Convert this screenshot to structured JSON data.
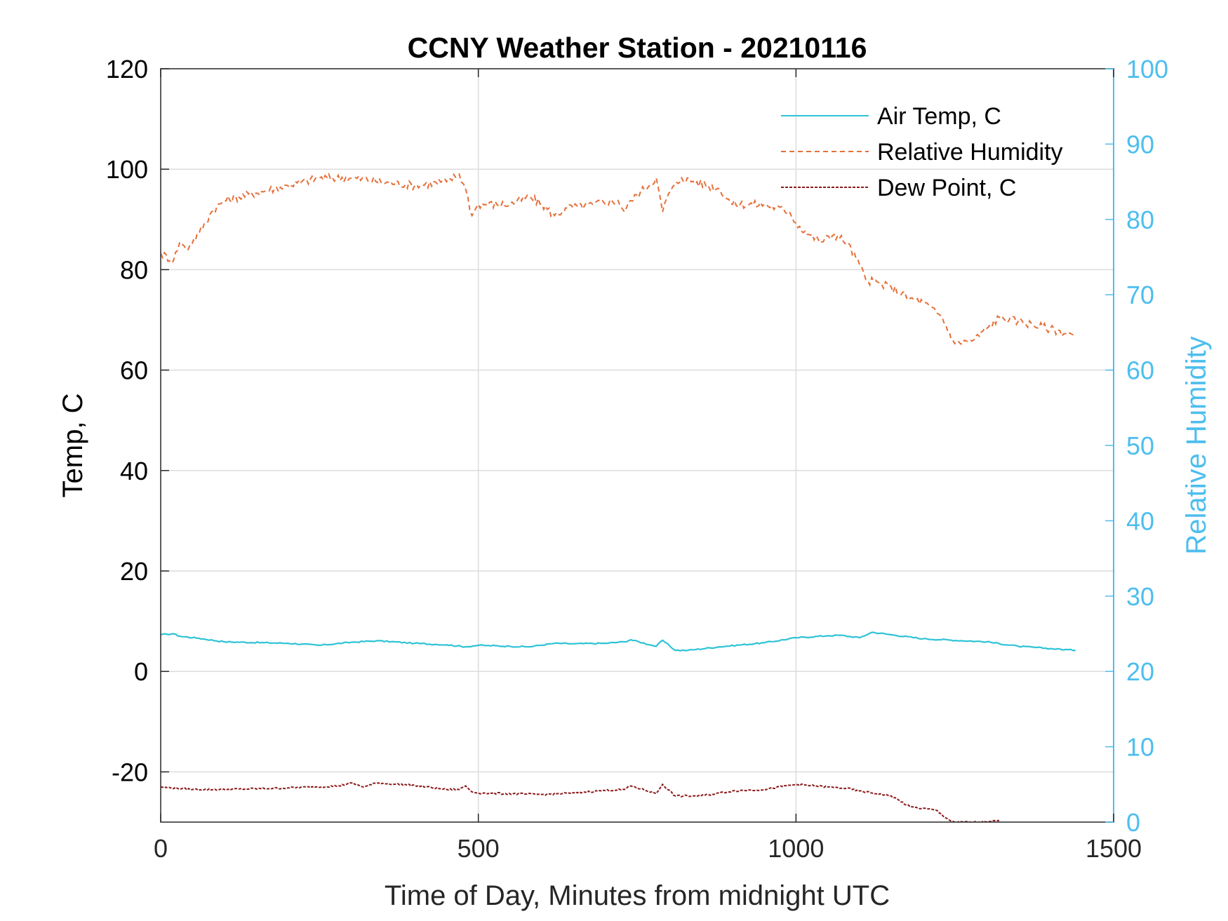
{
  "chart_data": {
    "type": "line",
    "title": "CCNY Weather Station - 20210116",
    "xlabel": "Time of Day, Minutes from midnight UTC",
    "ylabel_left": "Temp, C",
    "ylabel_right": "Relative Humidity",
    "xlim": [
      0,
      1500
    ],
    "ylim_left": [
      -30,
      120
    ],
    "ylim_right": [
      0,
      100
    ],
    "xticks": [
      "0",
      "500",
      "1000",
      "1500"
    ],
    "xtick_values": [
      0,
      500,
      1000,
      1500
    ],
    "yticks_left": [
      "-20",
      "0",
      "20",
      "40",
      "60",
      "80",
      "100",
      "120"
    ],
    "ytick_values_left": [
      -20,
      0,
      20,
      40,
      60,
      80,
      100,
      120
    ],
    "yticks_right": [
      "0",
      "10",
      "20",
      "30",
      "40",
      "50",
      "60",
      "70",
      "80",
      "90",
      "100"
    ],
    "ytick_values_right": [
      0,
      10,
      20,
      30,
      40,
      50,
      60,
      70,
      80,
      90,
      100
    ],
    "grid": true,
    "legend_position": "top-right",
    "right_axis_color": "#4DBEEE",
    "series": [
      {
        "name": "Air Temp, C",
        "axis": "left",
        "color": "#2EC3D6",
        "style": "solid",
        "x": [
          0,
          20,
          30,
          60,
          100,
          200,
          250,
          300,
          340,
          400,
          450,
          480,
          500,
          550,
          580,
          620,
          650,
          700,
          730,
          740,
          780,
          790,
          810,
          830,
          880,
          950,
          1000,
          1050,
          1070,
          1100,
          1120,
          1150,
          1200,
          1300,
          1350,
          1440
        ],
        "y": [
          7.3,
          7.5,
          7.0,
          6.6,
          5.9,
          5.6,
          5.2,
          5.8,
          6.1,
          5.6,
          5.3,
          4.9,
          5.2,
          5.0,
          4.9,
          5.6,
          5.5,
          5.6,
          5.9,
          6.3,
          5.0,
          6.2,
          4.2,
          4.2,
          4.9,
          5.7,
          6.7,
          7.1,
          7.2,
          6.7,
          7.8,
          7.3,
          6.5,
          5.9,
          5.0,
          4.2
        ]
      },
      {
        "name": "Relative Humidity",
        "axis": "right",
        "color": "#E5703A",
        "style": "dashed",
        "x": [
          0,
          20,
          30,
          40,
          60,
          80,
          100,
          150,
          200,
          250,
          300,
          350,
          400,
          450,
          470,
          480,
          490,
          500,
          550,
          580,
          600,
          620,
          640,
          680,
          720,
          730,
          740,
          780,
          790,
          800,
          820,
          880,
          900,
          950,
          990,
          1000,
          1020,
          1040,
          1060,
          1080,
          1100,
          1110,
          1150,
          1180,
          1200,
          1230,
          1250,
          1280,
          1300,
          1320,
          1350,
          1400,
          1440
        ],
        "y": [
          75.5,
          74.5,
          77,
          76,
          78,
          81,
          82.5,
          83.5,
          84.5,
          85.5,
          85.5,
          85,
          84.5,
          85,
          86,
          84,
          80.5,
          82,
          82,
          83,
          82,
          80.5,
          81.5,
          82,
          82.5,
          81,
          82.5,
          85.5,
          81,
          83.5,
          85.5,
          84,
          82,
          82,
          81,
          79.5,
          78,
          77,
          78,
          77,
          74,
          72,
          71,
          69.5,
          69,
          67,
          63.5,
          64,
          65.5,
          67,
          66.5,
          65.5,
          64.5
        ]
      },
      {
        "name": "Dew Point, C",
        "axis": "left",
        "color": "#8B1A1A",
        "style": "dashed",
        "x": [
          0,
          50,
          100,
          200,
          280,
          300,
          320,
          340,
          400,
          450,
          470,
          480,
          490,
          500,
          600,
          650,
          700,
          730,
          740,
          780,
          790,
          810,
          850,
          880,
          900,
          950,
          1000,
          1050,
          1080,
          1100,
          1150,
          1180,
          1220,
          1240,
          1250,
          1300,
          1320
        ],
        "y": [
          -23,
          -23.5,
          -23.5,
          -23.2,
          -22.8,
          -22.2,
          -23,
          -22.2,
          -22.7,
          -23.5,
          -23.5,
          -22.8,
          -24,
          -24.2,
          -24.5,
          -24.2,
          -23.7,
          -23.5,
          -22.8,
          -24.3,
          -22.5,
          -24.8,
          -24.8,
          -24.2,
          -23.8,
          -23.5,
          -22.5,
          -23,
          -23.3,
          -23.8,
          -24.8,
          -27,
          -27.6,
          -29.5,
          -30,
          -30,
          -29.7
        ]
      }
    ]
  }
}
